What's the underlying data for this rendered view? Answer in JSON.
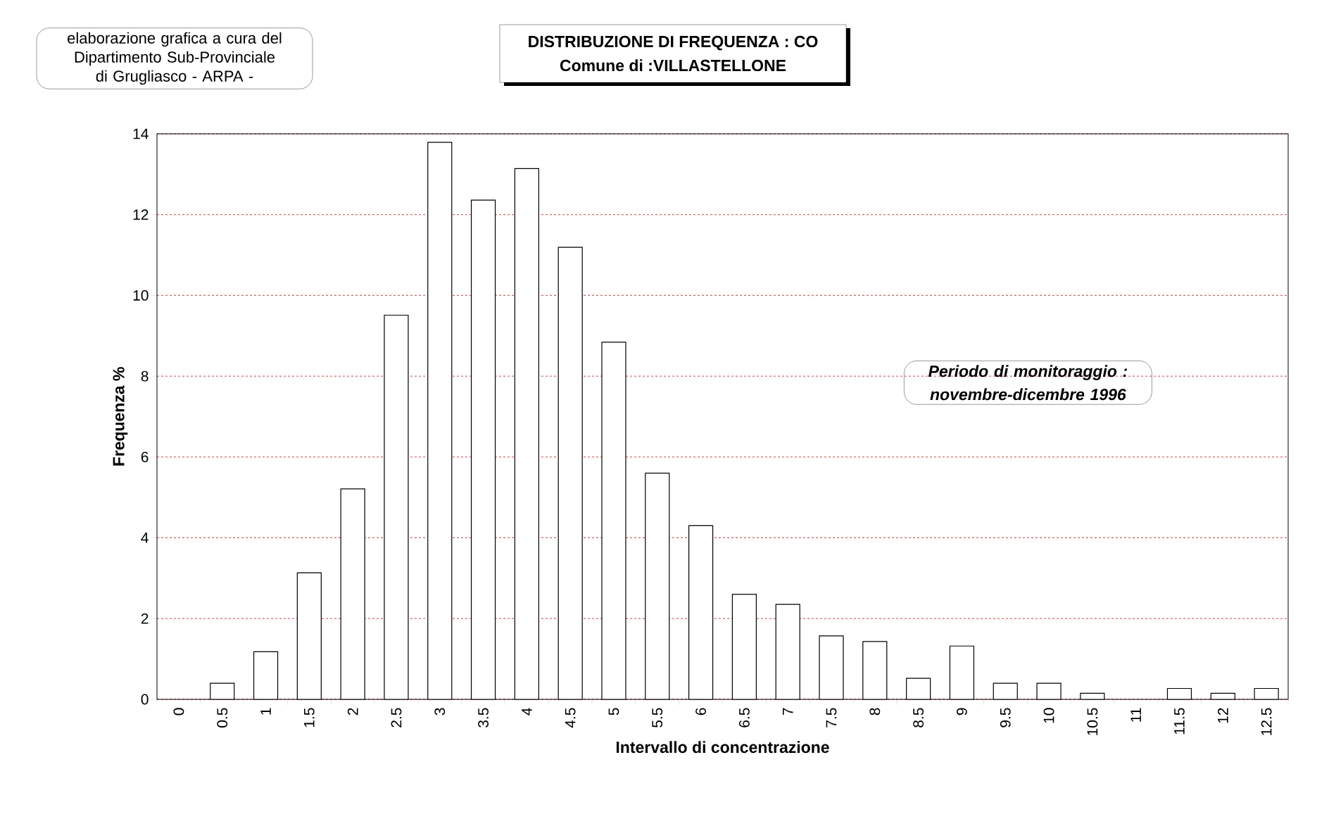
{
  "chart_data": {
    "type": "bar",
    "title": "DISTRIBUZIONE DI FREQUENZA : CO",
    "subtitle": "Comune di :VILLASTELLONE",
    "xlabel": "Intervallo di concentrazione",
    "ylabel": "Frequenza %",
    "annotations": [
      "elaborazione grafica a cura del Dipartimento Sub-Provinciale di Grugliasco - ARPA -",
      "Periodo di monitoraggio : novembre-dicembre 1996"
    ],
    "categories": [
      "0",
      "0.5",
      "1",
      "1.5",
      "2",
      "2.5",
      "3",
      "3.5",
      "4",
      "4.5",
      "5",
      "5.5",
      "6",
      "6.5",
      "7",
      "7.5",
      "8",
      "8.5",
      "9",
      "9.5",
      "10",
      "10.5",
      "11",
      "11.5",
      "12",
      "12.5"
    ],
    "values": [
      0,
      0.4,
      1.18,
      3.13,
      5.21,
      9.51,
      13.79,
      12.36,
      13.14,
      11.19,
      8.84,
      5.6,
      4.3,
      2.6,
      2.35,
      1.57,
      1.43,
      0.52,
      1.32,
      0.4,
      0.4,
      0.15,
      0,
      0.27,
      0.15,
      0.27
    ],
    "color": "#ffffff",
    "ylim": [
      0,
      14
    ],
    "yticks": [
      0,
      2,
      4,
      6,
      8,
      10,
      12,
      14
    ],
    "grid": "y"
  }
}
